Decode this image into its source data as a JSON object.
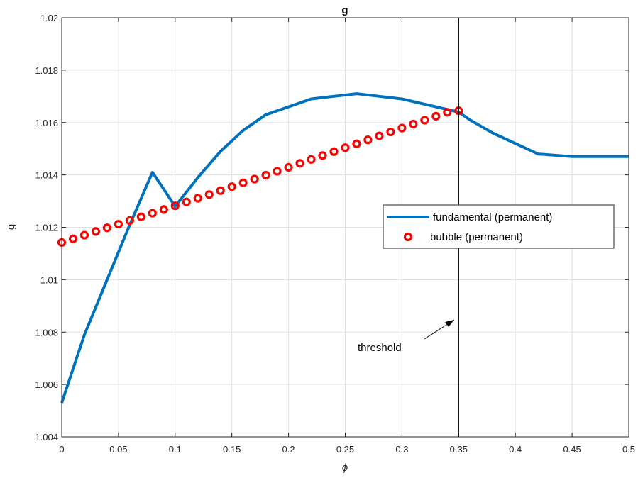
{
  "chart_data": {
    "type": "line",
    "title": "g",
    "xlabel": "ϕ",
    "ylabel": "g",
    "xlim": [
      0,
      0.5
    ],
    "ylim": [
      1.004,
      1.02
    ],
    "x_ticks": [
      "0",
      "0.05",
      "0.1",
      "0.15",
      "0.2",
      "0.25",
      "0.3",
      "0.35",
      "0.4",
      "0.45",
      "0.5"
    ],
    "y_ticks": [
      "1.004",
      "1.006",
      "1.008",
      "1.01",
      "1.012",
      "1.014",
      "1.016",
      "1.018",
      "1.02"
    ],
    "grid": true,
    "legend_position": "right",
    "series": [
      {
        "name": "fundamental (permanent)",
        "style": "line",
        "color": "#0072BD",
        "x": [
          0,
          0.02,
          0.04,
          0.06,
          0.08,
          0.1,
          0.12,
          0.14,
          0.16,
          0.18,
          0.2,
          0.22,
          0.24,
          0.26,
          0.28,
          0.3,
          0.32,
          0.34,
          0.35,
          0.36,
          0.38,
          0.4,
          0.42,
          0.45,
          0.5
        ],
        "y": [
          1.0053,
          1.0079,
          1.01,
          1.0121,
          1.0141,
          1.0128,
          1.0139,
          1.0149,
          1.0157,
          1.0163,
          1.0166,
          1.0169,
          1.017,
          1.0171,
          1.017,
          1.0169,
          1.0167,
          1.0165,
          1.0164,
          1.0161,
          1.0156,
          1.0152,
          1.0148,
          1.0147,
          1.0147
        ]
      },
      {
        "name": "bubble (permanent)",
        "style": "markers",
        "color": "#FF0000",
        "x": [
          0,
          0.01,
          0.02,
          0.03,
          0.04,
          0.05,
          0.06,
          0.07,
          0.08,
          0.09,
          0.1,
          0.11,
          0.12,
          0.13,
          0.14,
          0.15,
          0.16,
          0.17,
          0.18,
          0.19,
          0.2,
          0.21,
          0.22,
          0.23,
          0.24,
          0.25,
          0.26,
          0.27,
          0.28,
          0.29,
          0.3,
          0.31,
          0.32,
          0.33,
          0.34,
          0.35
        ],
        "y": [
          1.01142,
          1.01156,
          1.0117,
          1.01184,
          1.01198,
          1.01212,
          1.01226,
          1.0124,
          1.01254,
          1.01268,
          1.01282,
          1.01297,
          1.01311,
          1.01325,
          1.0134,
          1.01355,
          1.0137,
          1.01384,
          1.01399,
          1.01414,
          1.01429,
          1.01444,
          1.01459,
          1.01474,
          1.01489,
          1.01504,
          1.01519,
          1.01534,
          1.01549,
          1.01564,
          1.01579,
          1.01594,
          1.01609,
          1.01624,
          1.01639,
          1.01645
        ]
      }
    ],
    "vline": {
      "x": 0.35,
      "color": "#000000"
    },
    "annotation": {
      "text": "threshold"
    }
  }
}
